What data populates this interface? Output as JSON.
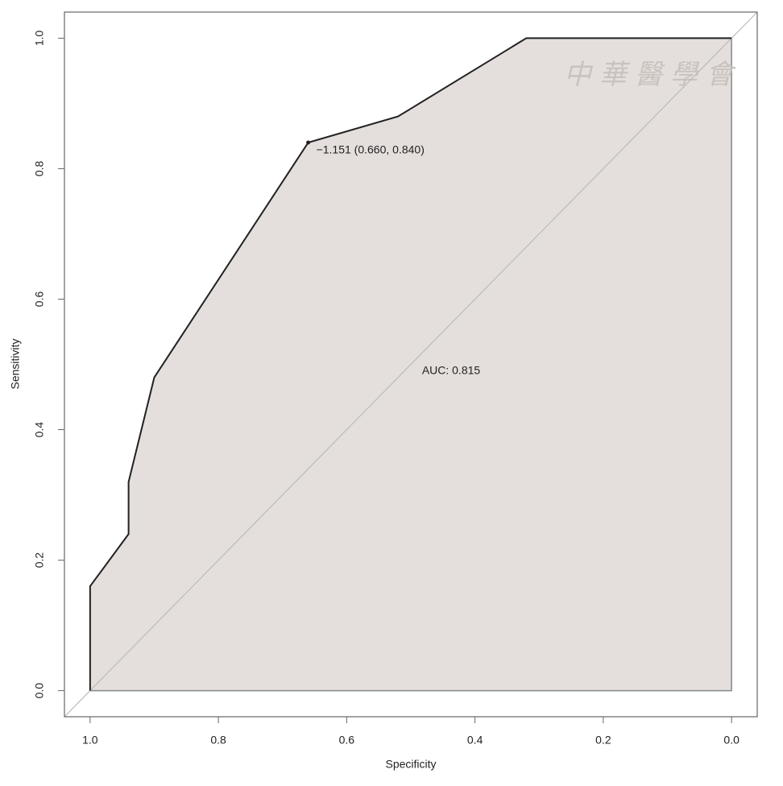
{
  "chart_data": {
    "type": "line",
    "x_label": "Specificity",
    "y_label": "Sensitivity",
    "x": [
      1.0,
      1.0,
      0.94,
      0.94,
      0.9,
      0.66,
      0.52,
      0.32,
      0.0
    ],
    "values": [
      0.0,
      0.16,
      0.24,
      0.32,
      0.48,
      0.84,
      0.88,
      1.0,
      1.0
    ],
    "color": "#222222",
    "fill_color": "#e4dfdc",
    "diagonal_color": "#bbbbbb",
    "xlim": [
      1.04,
      -0.04
    ],
    "ylim": [
      -0.04,
      1.04
    ],
    "xticks": [
      {
        "value": 1.0,
        "label": "1.0"
      },
      {
        "value": 0.8,
        "label": "0.8"
      },
      {
        "value": 0.6,
        "label": "0.6"
      },
      {
        "value": 0.4,
        "label": "0.4"
      },
      {
        "value": 0.2,
        "label": "0.2"
      },
      {
        "value": 0.0,
        "label": "0.0"
      }
    ],
    "yticks": [
      {
        "value": 0.0,
        "label": "0.0"
      },
      {
        "value": 0.2,
        "label": "0.2"
      },
      {
        "value": 0.4,
        "label": "0.4"
      },
      {
        "value": 0.6,
        "label": "0.6"
      },
      {
        "value": 0.8,
        "label": "0.8"
      },
      {
        "value": 1.0,
        "label": "1.0"
      }
    ],
    "threshold": {
      "text": "−1.151 (0.660, 0.840)",
      "x": 0.66,
      "y": 0.84
    },
    "auc_label": "AUC: 0.815",
    "watermark": "中華醫學會"
  }
}
